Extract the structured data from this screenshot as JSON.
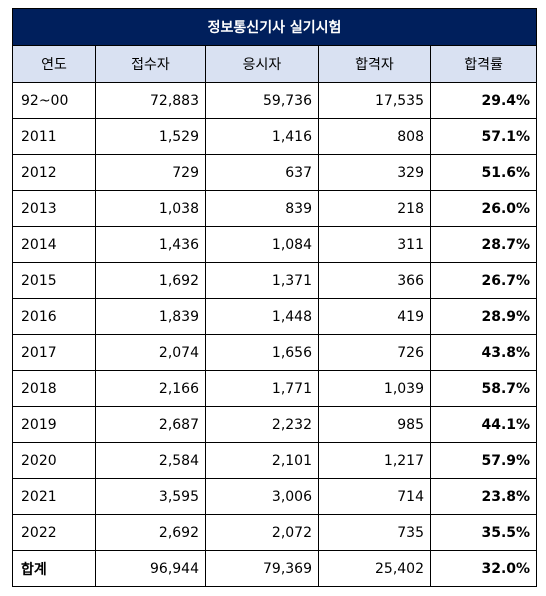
{
  "table": {
    "title": "정보통신기사 실기시험",
    "headers": [
      "연도",
      "접수자",
      "응시자",
      "합격자",
      "합격률"
    ],
    "rows": [
      [
        "92~00",
        "72,883",
        "59,736",
        "17,535",
        "29.4%"
      ],
      [
        "2011",
        "1,529",
        "1,416",
        "808",
        "57.1%"
      ],
      [
        "2012",
        "729",
        "637",
        "329",
        "51.6%"
      ],
      [
        "2013",
        "1,038",
        "839",
        "218",
        "26.0%"
      ],
      [
        "2014",
        "1,436",
        "1,084",
        "311",
        "28.7%"
      ],
      [
        "2015",
        "1,692",
        "1,371",
        "366",
        "26.7%"
      ],
      [
        "2016",
        "1,839",
        "1,448",
        "419",
        "28.9%"
      ],
      [
        "2017",
        "2,074",
        "1,656",
        "726",
        "43.8%"
      ],
      [
        "2018",
        "2,166",
        "1,771",
        "1,039",
        "58.7%"
      ],
      [
        "2019",
        "2,687",
        "2,232",
        "985",
        "44.1%"
      ],
      [
        "2020",
        "2,584",
        "2,101",
        "1,217",
        "57.9%"
      ],
      [
        "2021",
        "3,595",
        "3,006",
        "714",
        "23.8%"
      ],
      [
        "2022",
        "2,692",
        "2,072",
        "735",
        "35.5%"
      ]
    ],
    "total": [
      "합계",
      "96,944",
      "79,369",
      "25,402",
      "32.0%"
    ]
  },
  "colors": {
    "title_bg": "#001f5c",
    "header_bg": "#d9e1f2"
  }
}
